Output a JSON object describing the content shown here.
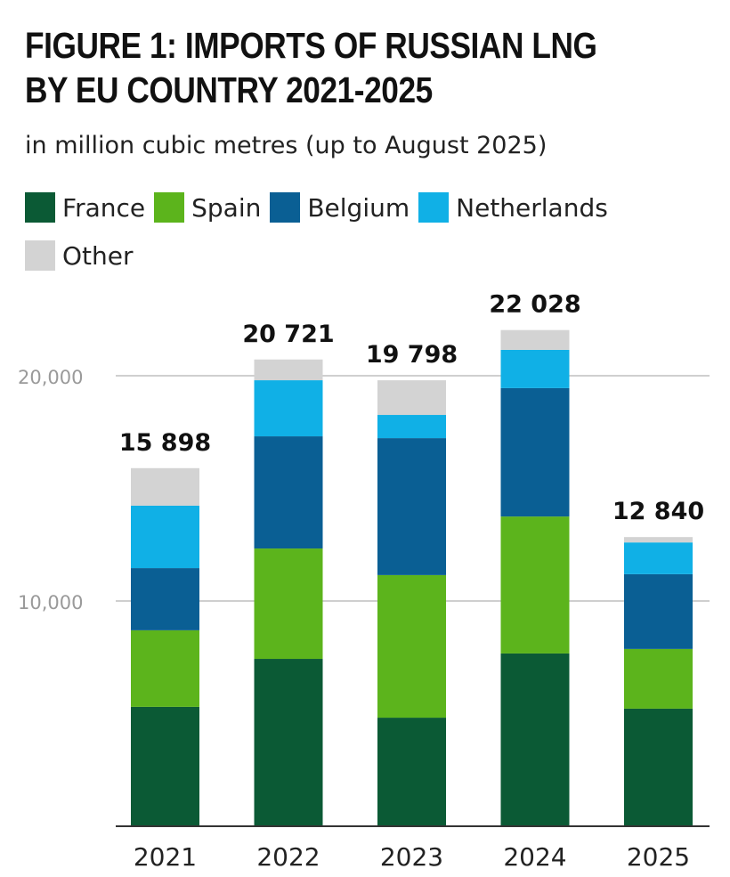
{
  "chart_data": {
    "type": "stacked-bar",
    "title": "FIGURE 1: IMPORTS OF RUSSIAN LNG BY EU COUNTRY 2021-2025",
    "title_lines": [
      "FIGURE 1: IMPORTS OF RUSSIAN LNG",
      "BY EU COUNTRY 2021-2025"
    ],
    "subtitle": "in million cubic metres (up to August 2025)",
    "categories": [
      "2021",
      "2022",
      "2023",
      "2024",
      "2025"
    ],
    "series": [
      {
        "name": "France",
        "color": "#0b5a35",
        "values": [
          5300,
          7430,
          4820,
          7670,
          5220
        ]
      },
      {
        "name": "Spain",
        "color": "#5cb41c",
        "values": [
          3400,
          4900,
          6330,
          6080,
          2650
        ]
      },
      {
        "name": "Belgium",
        "color": "#0a5f94",
        "values": [
          2760,
          4980,
          6080,
          5700,
          3320
        ]
      },
      {
        "name": "Netherlands",
        "color": "#10b0e6",
        "values": [
          2770,
          2490,
          1030,
          1700,
          1410
        ]
      },
      {
        "name": "Other",
        "color": "#d3d3d3",
        "values": [
          1668,
          921,
          1538,
          878,
          240
        ]
      }
    ],
    "totals": [
      15898,
      20721,
      19798,
      22028,
      12840
    ],
    "total_labels": [
      "15 898",
      "20 721",
      "19 798",
      "22 028",
      "12 840"
    ],
    "y_ticks": [
      10000,
      20000
    ],
    "y_tick_labels": [
      "10,000",
      "20,000"
    ],
    "ylim": [
      0,
      22500
    ],
    "grid": true,
    "legend_position": "top-left"
  }
}
